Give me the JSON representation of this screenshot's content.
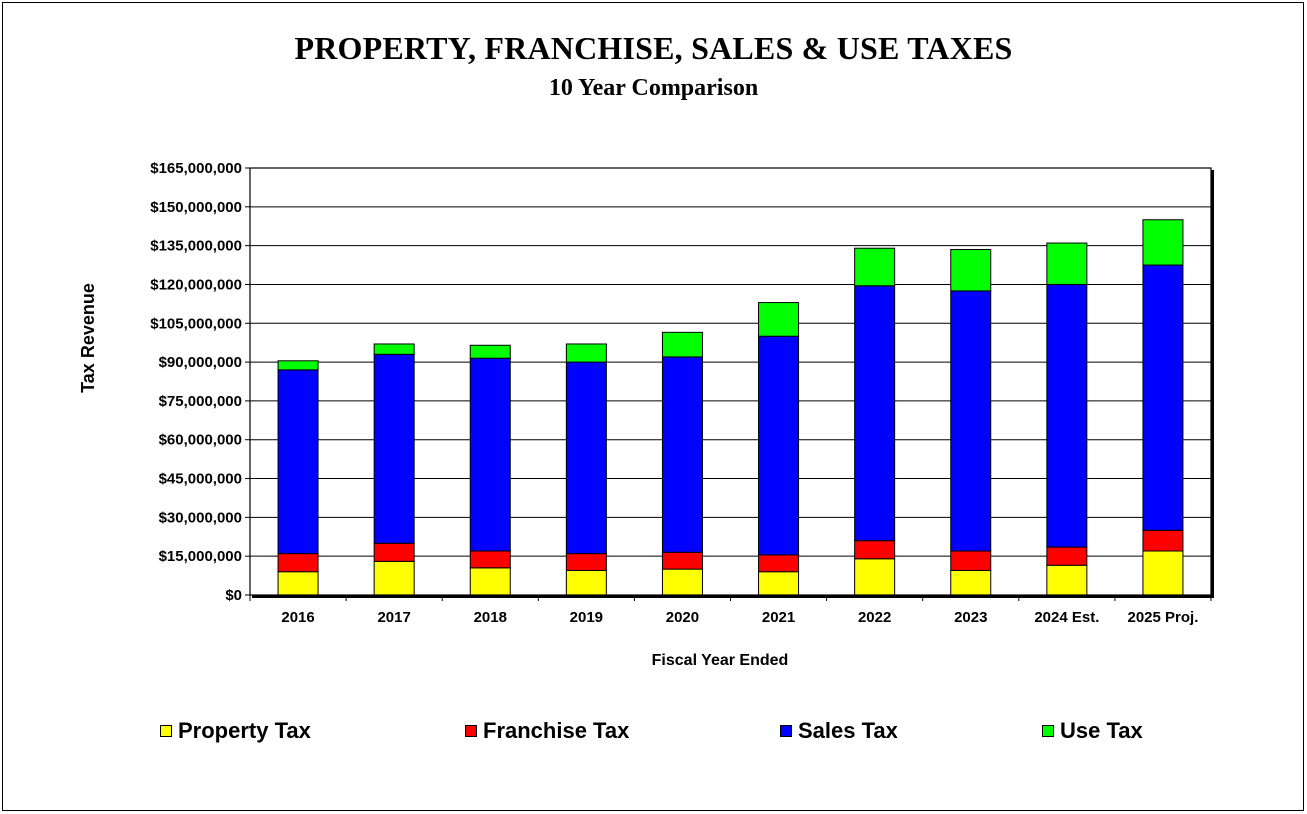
{
  "chart_data": {
    "type": "bar",
    "stacked": true,
    "title": "PROPERTY, FRANCHISE, SALES & USE TAXES",
    "subtitle": "10 Year Comparison",
    "xlabel": "Fiscal Year Ended",
    "ylabel": "Tax Revenue",
    "categories": [
      "2016",
      "2017",
      "2018",
      "2019",
      "2020",
      "2021",
      "2022",
      "2023",
      "2024 Est.",
      "2025 Proj."
    ],
    "ylim": [
      0,
      165000000
    ],
    "yticks": [
      "$0",
      "$15,000,000",
      "$30,000,000",
      "$45,000,000",
      "$60,000,000",
      "$75,000,000",
      "$90,000,000",
      "$105,000,000",
      "$120,000,000",
      "$135,000,000",
      "$150,000,000",
      "$165,000,000"
    ],
    "ytick_values": [
      0,
      15000000,
      30000000,
      45000000,
      60000000,
      75000000,
      90000000,
      105000000,
      120000000,
      135000000,
      150000000,
      165000000
    ],
    "grid": "horizontal",
    "legend_position": "bottom",
    "series": [
      {
        "name": "Property Tax",
        "color": "#FFFF00",
        "values": [
          9000000,
          13000000,
          10500000,
          9500000,
          10000000,
          9000000,
          14000000,
          9500000,
          11500000,
          17000000
        ]
      },
      {
        "name": "Franchise Tax",
        "color": "#FF0000",
        "values": [
          7000000,
          7000000,
          6500000,
          6500000,
          6500000,
          6500000,
          7000000,
          7500000,
          7000000,
          8000000
        ]
      },
      {
        "name": "Sales Tax",
        "color": "#0000FF",
        "values": [
          71000000,
          73000000,
          74500000,
          74000000,
          75500000,
          84500000,
          98500000,
          100500000,
          101500000,
          102500000
        ]
      },
      {
        "name": "Use Tax",
        "color": "#00FF00",
        "values": [
          3500000,
          4000000,
          5000000,
          7000000,
          9500000,
          13000000,
          14500000,
          16000000,
          16000000,
          17500000
        ]
      }
    ]
  }
}
